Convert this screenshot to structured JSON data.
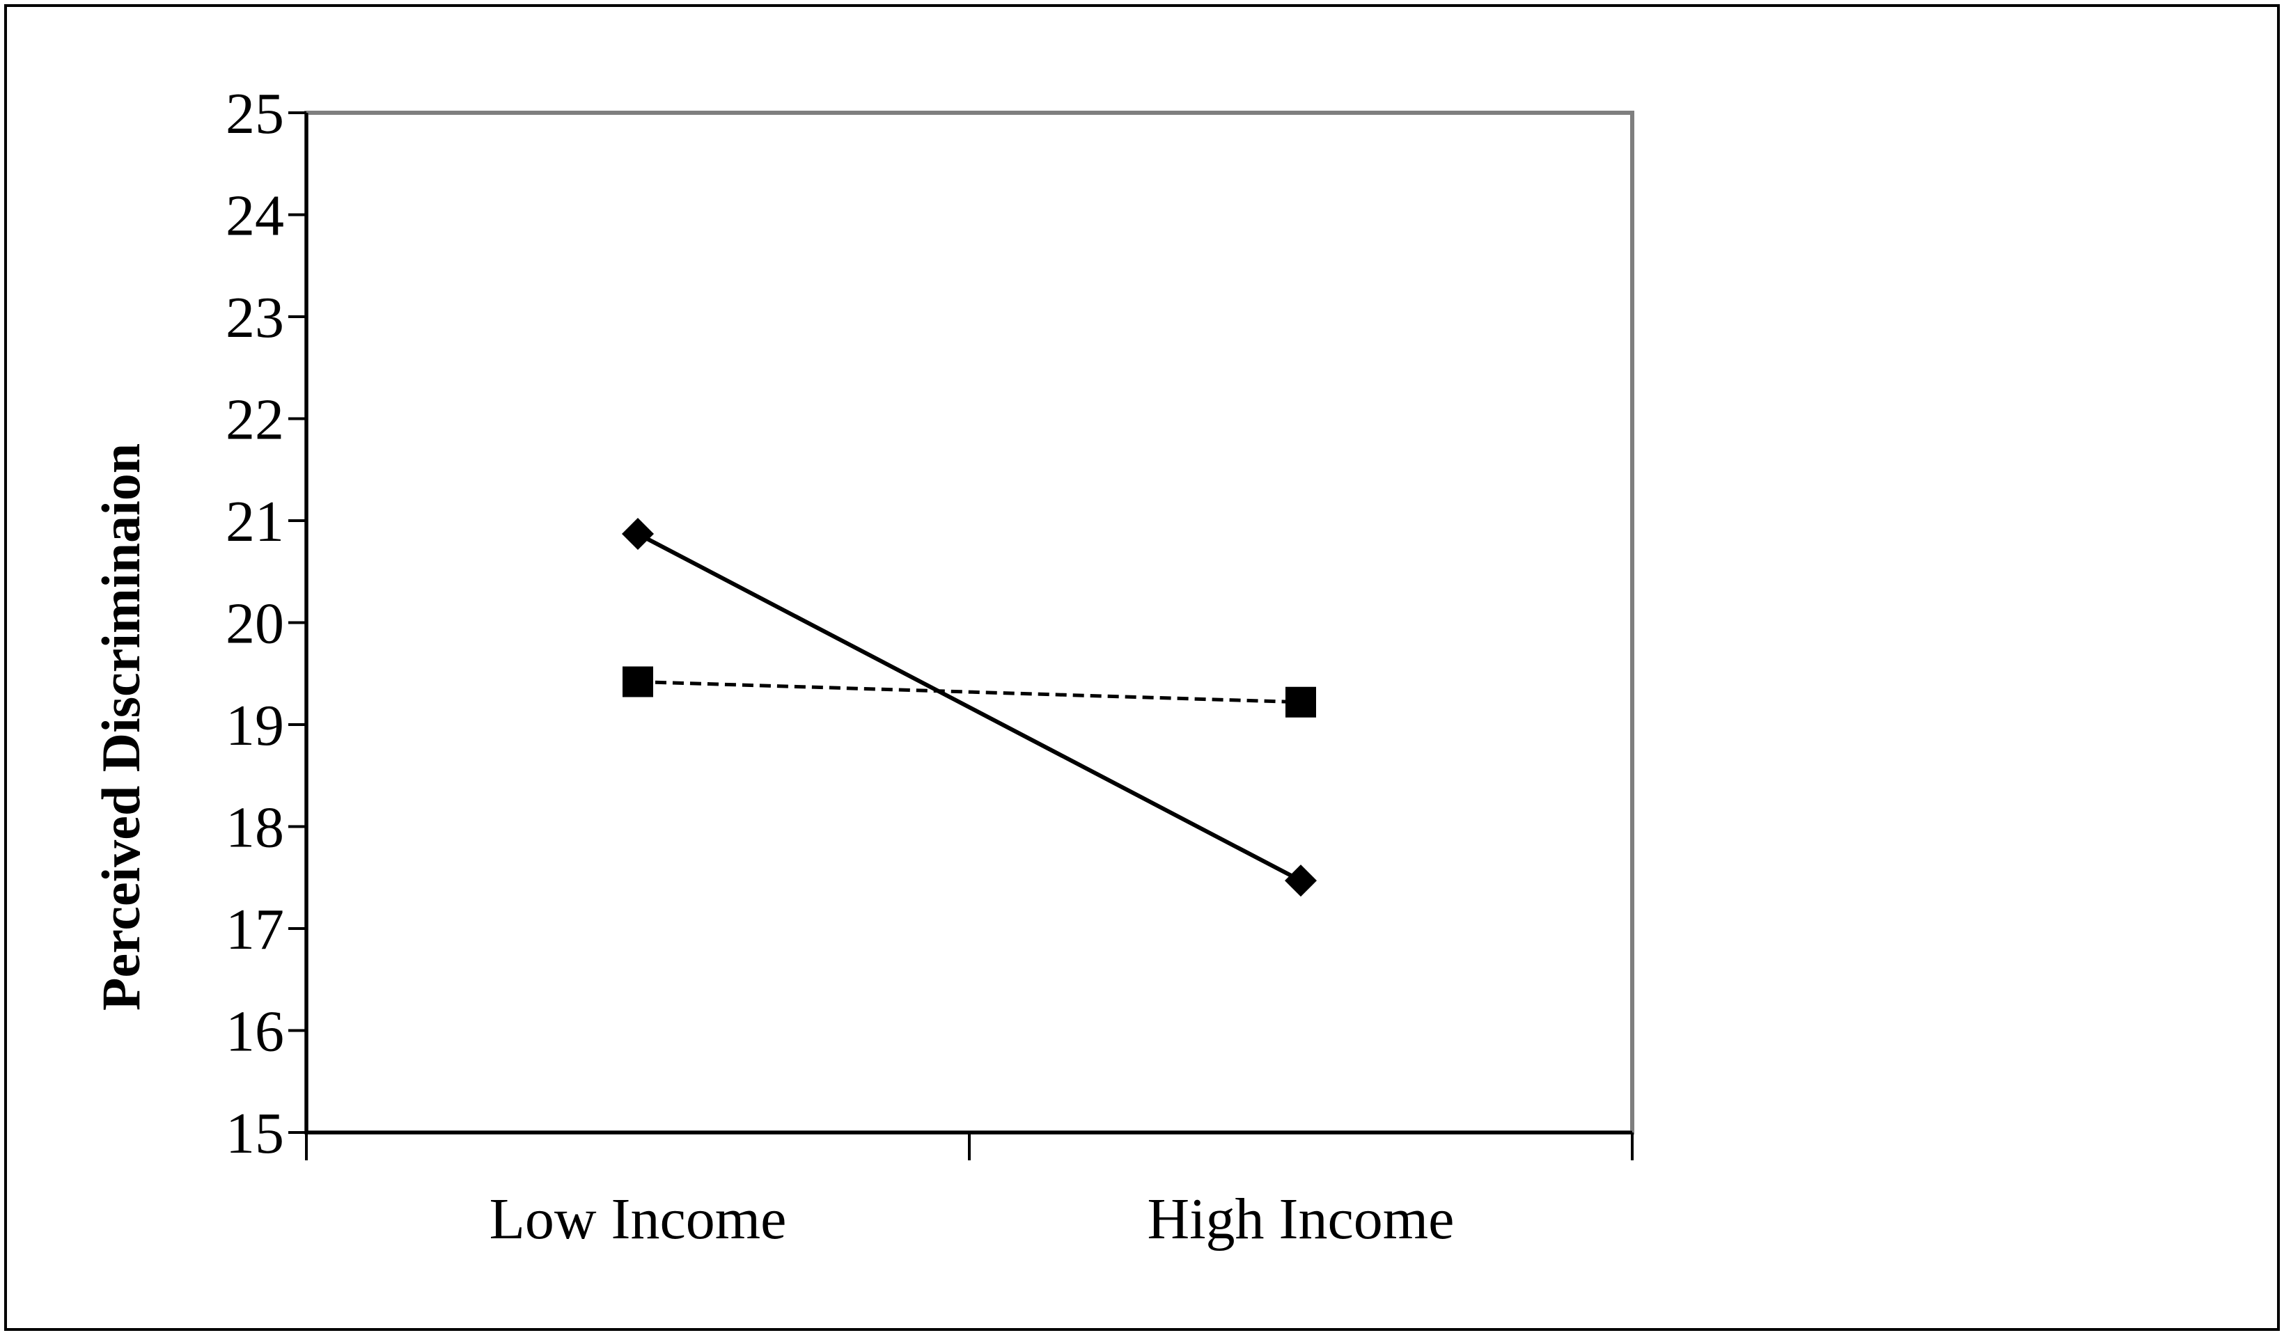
{
  "chart_data": {
    "type": "line",
    "title": "",
    "xlabel": "",
    "ylabel": "Perceived Discriminaion",
    "categories": [
      "Low Income",
      "High Income"
    ],
    "ylim": [
      15,
      25
    ],
    "yticks": [
      "15",
      "16",
      "17",
      "18",
      "19",
      "20",
      "21",
      "22",
      "23",
      "24",
      "25"
    ],
    "grid": false,
    "legend": "none",
    "series": [
      {
        "marker": "diamond",
        "line_style": "solid",
        "color": "#000000",
        "values": [
          20.87,
          17.47
        ]
      },
      {
        "marker": "square",
        "line_style": "dashed",
        "color": "#000000",
        "values": [
          19.42,
          19.22
        ]
      }
    ]
  },
  "colors": {
    "plot_border": "#7f7f7f",
    "frame_border": "#000000",
    "background": "#ffffff"
  }
}
